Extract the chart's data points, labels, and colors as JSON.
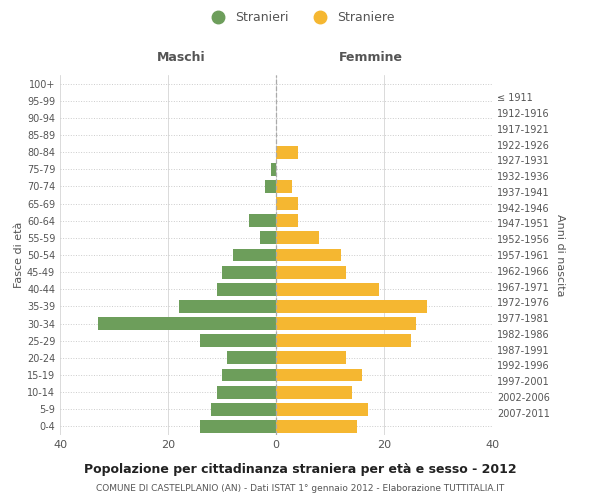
{
  "age_groups": [
    "0-4",
    "5-9",
    "10-14",
    "15-19",
    "20-24",
    "25-29",
    "30-34",
    "35-39",
    "40-44",
    "45-49",
    "50-54",
    "55-59",
    "60-64",
    "65-69",
    "70-74",
    "75-79",
    "80-84",
    "85-89",
    "90-94",
    "95-99",
    "100+"
  ],
  "birth_years": [
    "2007-2011",
    "2002-2006",
    "1997-2001",
    "1992-1996",
    "1987-1991",
    "1982-1986",
    "1977-1981",
    "1972-1976",
    "1967-1971",
    "1962-1966",
    "1957-1961",
    "1952-1956",
    "1947-1951",
    "1942-1946",
    "1937-1941",
    "1932-1936",
    "1927-1931",
    "1922-1926",
    "1917-1921",
    "1912-1916",
    "≤ 1911"
  ],
  "maschi": [
    14,
    12,
    11,
    10,
    9,
    14,
    33,
    18,
    11,
    10,
    8,
    3,
    5,
    0,
    2,
    1,
    0,
    0,
    0,
    0,
    0
  ],
  "femmine": [
    15,
    17,
    14,
    16,
    13,
    25,
    26,
    28,
    19,
    13,
    12,
    8,
    4,
    4,
    3,
    0,
    4,
    0,
    0,
    0,
    0
  ],
  "maschi_color": "#6d9e5b",
  "femmine_color": "#f5b731",
  "title": "Popolazione per cittadinanza straniera per età e sesso - 2012",
  "subtitle": "COMUNE DI CASTELPLANIO (AN) - Dati ISTAT 1° gennaio 2012 - Elaborazione TUTTITALIA.IT",
  "xlabel_left": "Maschi",
  "xlabel_right": "Femmine",
  "ylabel_left": "Fasce di età",
  "ylabel_right": "Anni di nascita",
  "legend_stranieri": "Stranieri",
  "legend_straniere": "Straniere",
  "xlim": 40,
  "background_color": "#ffffff",
  "grid_color": "#cccccc"
}
